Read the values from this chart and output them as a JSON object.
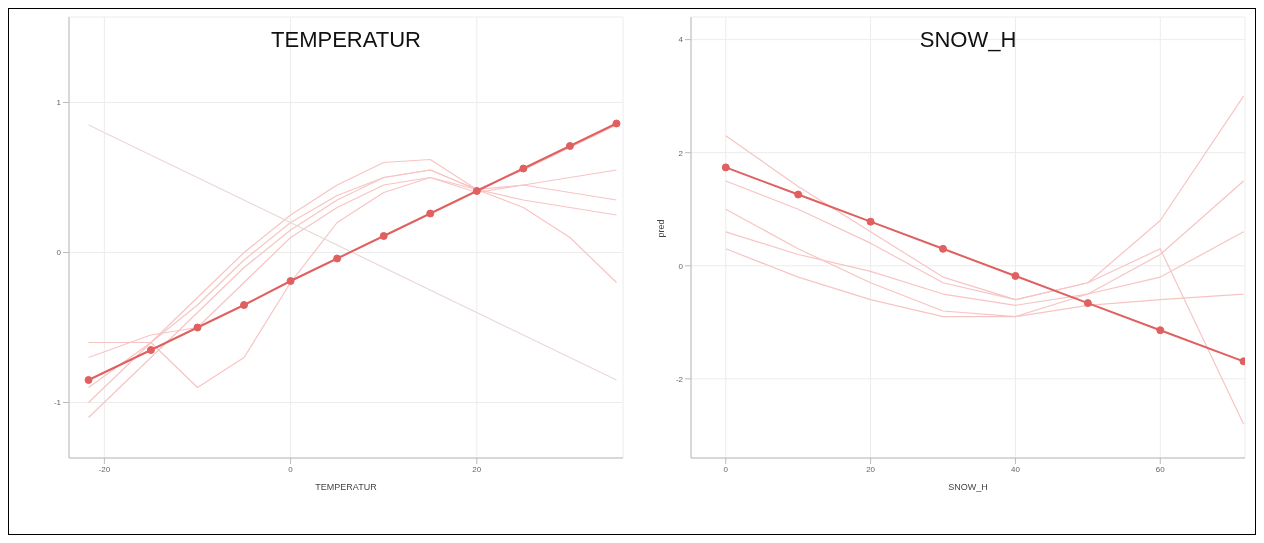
{
  "chart_data": [
    {
      "type": "line",
      "title": "TEMPERATUR",
      "xlabel": "TEMPERATUR",
      "xlim": [
        -23.8,
        35.7
      ],
      "xticks": [
        -20,
        0,
        20
      ],
      "ylim": [
        -1.37,
        1.57
      ],
      "yticks": [
        -1,
        0,
        1
      ],
      "grid": true,
      "series": [
        {
          "color": "#f7c4c4",
          "x": [
            -21.7,
            -15,
            -10,
            -5,
            0,
            5,
            10,
            15,
            20,
            25,
            30,
            35
          ],
          "values": [
            -1.1,
            -0.7,
            -0.4,
            -0.1,
            0.15,
            0.35,
            0.5,
            0.55,
            0.42,
            0.35,
            0.3,
            0.25
          ]
        },
        {
          "color": "#f7c4c4",
          "x": [
            -21.7,
            -15,
            -10,
            -5,
            0,
            5,
            10,
            15,
            20,
            25,
            30,
            35
          ],
          "values": [
            -1.0,
            -0.6,
            -0.3,
            0.0,
            0.25,
            0.45,
            0.6,
            0.62,
            0.42,
            0.45,
            0.5,
            0.55
          ]
        },
        {
          "color": "#f7c4c4",
          "x": [
            -21.7,
            -15,
            -10,
            -5,
            0,
            5,
            10,
            15,
            20,
            25,
            30,
            35
          ],
          "values": [
            -0.9,
            -0.6,
            -0.35,
            -0.05,
            0.2,
            0.38,
            0.5,
            0.55,
            0.42,
            0.55,
            0.7,
            0.85
          ]
        },
        {
          "color": "#f7c4c4",
          "x": [
            -21.7,
            -15,
            -10,
            -5,
            0,
            5,
            10,
            15,
            20,
            25,
            30,
            35
          ],
          "values": [
            -0.6,
            -0.6,
            -0.9,
            -0.7,
            -0.2,
            0.2,
            0.4,
            0.5,
            0.42,
            0.3,
            0.1,
            -0.2
          ]
        },
        {
          "color": "#f7c4c4",
          "x": [
            -21.7,
            -15,
            -10,
            -5,
            0,
            5,
            10,
            15,
            20,
            25,
            30,
            35
          ],
          "values": [
            -0.7,
            -0.55,
            -0.5,
            -0.2,
            0.1,
            0.3,
            0.45,
            0.5,
            0.4,
            0.45,
            0.4,
            0.35
          ]
        },
        {
          "color": "#ead8d8",
          "x": [
            -21.7,
            35
          ],
          "values": [
            0.85,
            -0.85
          ]
        },
        {
          "color": "#e0605f",
          "marker": "circle",
          "x": [
            -21.7,
            -15,
            -10,
            -5,
            0,
            5,
            10,
            15,
            20,
            25,
            30,
            35
          ],
          "values": [
            -0.85,
            -0.65,
            -0.5,
            -0.35,
            -0.19,
            -0.04,
            0.11,
            0.26,
            0.41,
            0.56,
            0.71,
            0.86
          ]
        }
      ]
    },
    {
      "type": "line",
      "title": "SNOW_H",
      "xlabel": "SNOW_H",
      "ylabel": "pred",
      "xlim": [
        -4.8,
        71.7
      ],
      "xticks": [
        0,
        20,
        40,
        60
      ],
      "ylim": [
        -3.4,
        4.4
      ],
      "yticks": [
        -2,
        0,
        2,
        4
      ],
      "grid": true,
      "series": [
        {
          "color": "#f7c4c4",
          "x": [
            0,
            10,
            20,
            30,
            40,
            50,
            60,
            71.5
          ],
          "values": [
            2.3,
            1.4,
            0.6,
            -0.2,
            -0.6,
            -0.3,
            0.8,
            3.0
          ]
        },
        {
          "color": "#f7c4c4",
          "x": [
            0,
            10,
            20,
            30,
            40,
            50,
            60,
            71.5
          ],
          "values": [
            1.0,
            0.3,
            -0.3,
            -0.8,
            -0.9,
            -0.5,
            0.2,
            1.5
          ]
        },
        {
          "color": "#f7c4c4",
          "x": [
            0,
            10,
            20,
            30,
            40,
            50,
            60,
            71.5
          ],
          "values": [
            0.3,
            -0.2,
            -0.6,
            -0.9,
            -0.9,
            -0.7,
            -0.6,
            -0.5
          ]
        },
        {
          "color": "#f7c4c4",
          "x": [
            0,
            10,
            20,
            30,
            40,
            50,
            60,
            71.5
          ],
          "values": [
            1.5,
            1.0,
            0.4,
            -0.3,
            -0.6,
            -0.3,
            0.3,
            -2.8
          ]
        },
        {
          "color": "#f7c4c4",
          "x": [
            0,
            10,
            20,
            30,
            40,
            50,
            60,
            71.5
          ],
          "values": [
            0.6,
            0.2,
            -0.1,
            -0.5,
            -0.7,
            -0.5,
            -0.2,
            0.6
          ]
        },
        {
          "color": "#e0605f",
          "marker": "circle",
          "x": [
            0,
            10,
            20,
            30,
            40,
            50,
            60,
            71.5
          ],
          "values": [
            1.74,
            1.26,
            0.78,
            0.3,
            -0.18,
            -0.66,
            -1.14,
            -1.69
          ]
        }
      ]
    }
  ]
}
